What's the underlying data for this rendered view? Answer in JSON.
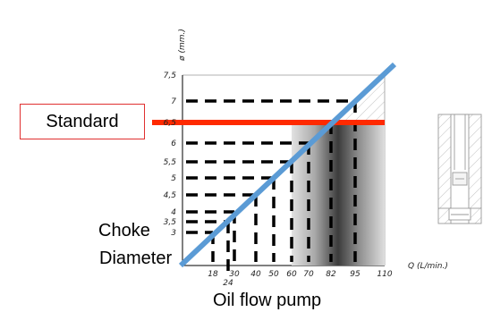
{
  "chart_data": {
    "type": "line",
    "xlabel": "Q (L/min.)",
    "ylabel": "ø (mm.)",
    "x_ticks": [
      "18",
      "24",
      "30",
      "40",
      "50",
      "60",
      "70",
      "82",
      "95",
      "110"
    ],
    "y_ticks": [
      "3",
      "3,5",
      "4",
      "4,5",
      "5",
      "5,5",
      "6",
      "6,5",
      "7",
      "7,5"
    ],
    "points": [
      {
        "q": 18,
        "d": 3
      },
      {
        "q": 24,
        "d": 3.5
      },
      {
        "q": 30,
        "d": 4
      },
      {
        "q": 40,
        "d": 4.5
      },
      {
        "q": 50,
        "d": 5
      },
      {
        "q": 60,
        "d": 5.5
      },
      {
        "q": 70,
        "d": 6
      },
      {
        "q": 82,
        "d": 6.5
      },
      {
        "q": 95,
        "d": 7
      }
    ],
    "standard_diameter": 6.5,
    "colors": {
      "diagonal": "#5b9bd5",
      "standard_line": "#ff2a00",
      "dashes": "#000000"
    }
  },
  "labels": {
    "standard": "Standard",
    "choke_line1": "Choke",
    "choke_line2": "Diameter",
    "x_title": "Oil flow pump"
  }
}
